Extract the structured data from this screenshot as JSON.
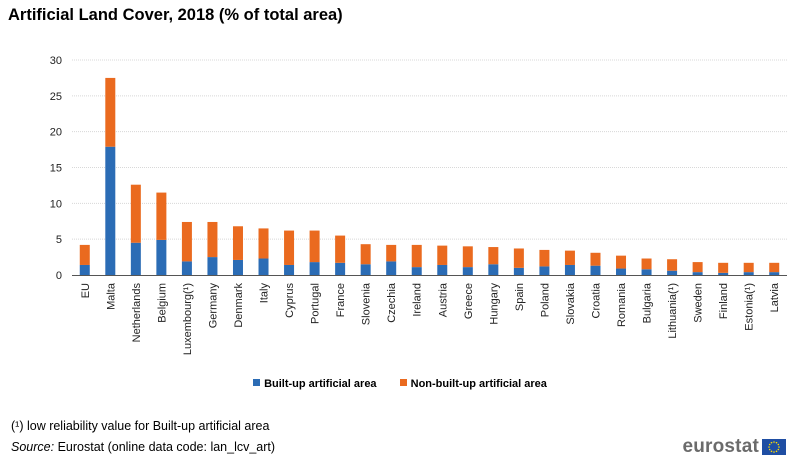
{
  "title": "Artificial Land Cover, 2018 (% of total area)",
  "chart_data": {
    "type": "bar",
    "stacked": true,
    "title": "Artificial Land Cover, 2018 (% of total area)",
    "xlabel": "",
    "ylabel": "",
    "ylim": [
      0,
      30
    ],
    "yticks": [
      0,
      5,
      10,
      15,
      20,
      25,
      30
    ],
    "grid": true,
    "legend_position": "bottom",
    "categories": [
      "EU",
      "Malta",
      "Netherlands",
      "Belgium",
      "Luxembourg(¹)",
      "Germany",
      "Denmark",
      "Italy",
      "Cyprus",
      "Portugal",
      "France",
      "Slovenia",
      "Czechia",
      "Ireland",
      "Austria",
      "Greece",
      "Hungary",
      "Spain",
      "Poland",
      "Slovakia",
      "Croatia",
      "Romania",
      "Bulgaria",
      "Lithuania(¹)",
      "Sweden",
      "Finland",
      "Estonia(¹)",
      "Latvia"
    ],
    "series": [
      {
        "name": "Built-up artificial area",
        "color": "#2b6cb5",
        "values": [
          1.4,
          17.9,
          4.5,
          4.9,
          1.9,
          2.5,
          2.1,
          2.3,
          1.4,
          1.8,
          1.7,
          1.5,
          1.9,
          1.1,
          1.4,
          1.1,
          1.5,
          1.0,
          1.2,
          1.4,
          1.3,
          0.9,
          0.8,
          0.6,
          0.4,
          0.3,
          0.4,
          0.4
        ]
      },
      {
        "name": "Non-built-up artificial area",
        "color": "#ea6a1f",
        "values": [
          2.8,
          9.6,
          8.1,
          6.6,
          5.5,
          4.9,
          4.7,
          4.2,
          4.8,
          4.4,
          3.8,
          2.8,
          2.3,
          3.1,
          2.7,
          2.9,
          2.4,
          2.7,
          2.3,
          2.0,
          1.8,
          1.8,
          1.5,
          1.6,
          1.4,
          1.4,
          1.3,
          1.3
        ]
      }
    ]
  },
  "notes": {
    "footnote": "(¹) low reliability value for Built-up artificial area",
    "source_label": "Source:",
    "source_text": " Eurostat (online data code: lan_lcv_art)"
  },
  "logo": {
    "text": "eurostat",
    "flag_color": "#1f4ea3",
    "star_color": "#ffde00"
  }
}
